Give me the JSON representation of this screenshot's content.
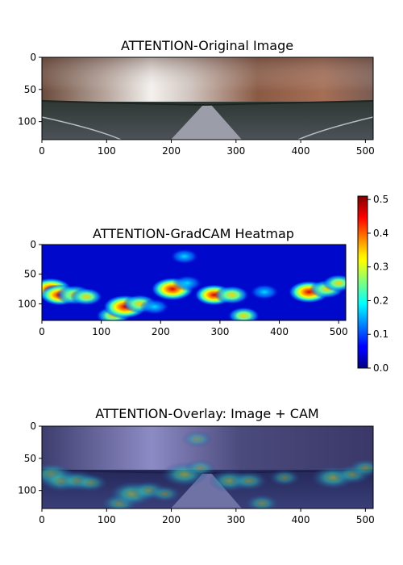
{
  "chart_data": [
    {
      "type": "image",
      "title": "ATTENTION-Original Image",
      "xticks": [
        0,
        100,
        200,
        300,
        400,
        500
      ],
      "yticks": [
        0,
        50,
        100
      ],
      "xlim": [
        0,
        512
      ],
      "ylim": [
        0,
        128
      ]
    },
    {
      "type": "heatmap",
      "title": "ATTENTION-GradCAM Heatmap",
      "colormap": "jet",
      "xticks": [
        0,
        100,
        200,
        300,
        400,
        500
      ],
      "yticks": [
        0,
        50,
        100
      ],
      "xlim": [
        0,
        512
      ],
      "ylim": [
        0,
        128
      ],
      "colorbar": {
        "min": 0.0,
        "max": 0.51,
        "ticks": [
          "0.0",
          "0.1",
          "0.2",
          "0.3",
          "0.4",
          "0.5"
        ]
      },
      "hotspots": [
        {
          "x": 15,
          "y": 75,
          "value": 0.45
        },
        {
          "x": 30,
          "y": 85,
          "value": 0.4
        },
        {
          "x": 55,
          "y": 85,
          "value": 0.35
        },
        {
          "x": 75,
          "y": 88,
          "value": 0.25
        },
        {
          "x": 120,
          "y": 120,
          "value": 0.3
        },
        {
          "x": 140,
          "y": 105,
          "value": 0.5
        },
        {
          "x": 165,
          "y": 100,
          "value": 0.3
        },
        {
          "x": 190,
          "y": 105,
          "value": 0.2
        },
        {
          "x": 220,
          "y": 75,
          "value": 0.48
        },
        {
          "x": 245,
          "y": 65,
          "value": 0.2
        },
        {
          "x": 240,
          "y": 20,
          "value": 0.18
        },
        {
          "x": 290,
          "y": 85,
          "value": 0.4
        },
        {
          "x": 320,
          "y": 85,
          "value": 0.3
        },
        {
          "x": 340,
          "y": 120,
          "value": 0.25
        },
        {
          "x": 375,
          "y": 80,
          "value": 0.2
        },
        {
          "x": 450,
          "y": 80,
          "value": 0.45
        },
        {
          "x": 480,
          "y": 75,
          "value": 0.3
        },
        {
          "x": 500,
          "y": 65,
          "value": 0.25
        }
      ]
    },
    {
      "type": "image",
      "title": "ATTENTION-Overlay: Image + CAM",
      "xticks": [
        0,
        100,
        200,
        300,
        400,
        500
      ],
      "yticks": [
        0,
        50,
        100
      ],
      "xlim": [
        0,
        512
      ],
      "ylim": [
        0,
        128
      ]
    }
  ]
}
